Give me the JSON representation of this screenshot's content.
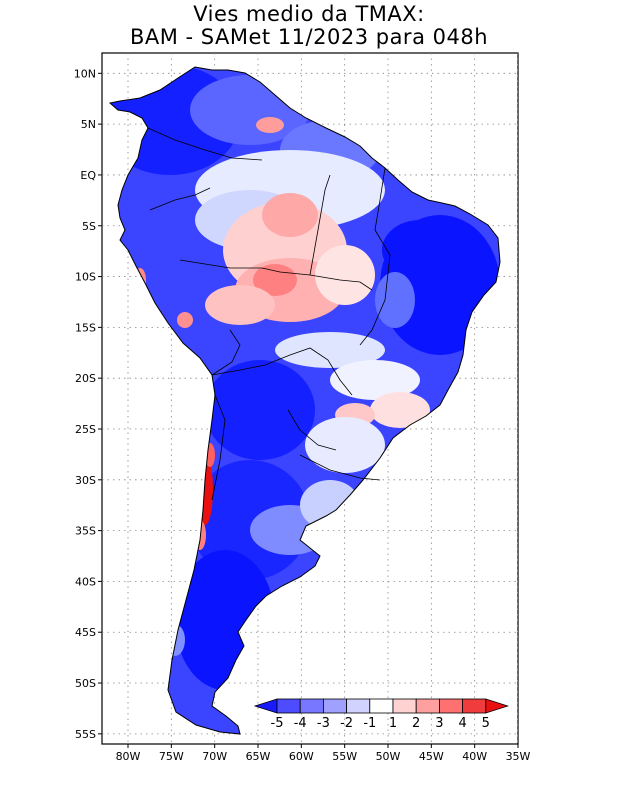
{
  "title": {
    "line1": "Vies medio da TMAX:",
    "line2": "BAM - SAMet 11/2023  para 048h"
  },
  "map": {
    "region": "South America",
    "lat_range": [
      -56,
      12
    ],
    "lon_range": [
      -83,
      -35
    ]
  },
  "axes": {
    "lat_ticks": [
      {
        "value": 10,
        "label": "10N"
      },
      {
        "value": 5,
        "label": "5N"
      },
      {
        "value": 0,
        "label": "EQ"
      },
      {
        "value": -5,
        "label": "5S"
      },
      {
        "value": -10,
        "label": "10S"
      },
      {
        "value": -15,
        "label": "15S"
      },
      {
        "value": -20,
        "label": "20S"
      },
      {
        "value": -25,
        "label": "25S"
      },
      {
        "value": -30,
        "label": "30S"
      },
      {
        "value": -35,
        "label": "35S"
      },
      {
        "value": -40,
        "label": "40S"
      },
      {
        "value": -45,
        "label": "45S"
      },
      {
        "value": -50,
        "label": "50S"
      },
      {
        "value": -55,
        "label": "55S"
      }
    ],
    "lon_ticks": [
      {
        "value": -80,
        "label": "80W"
      },
      {
        "value": -75,
        "label": "75W"
      },
      {
        "value": -70,
        "label": "70W"
      },
      {
        "value": -65,
        "label": "65W"
      },
      {
        "value": -60,
        "label": "60W"
      },
      {
        "value": -55,
        "label": "55W"
      },
      {
        "value": -50,
        "label": "50W"
      },
      {
        "value": -45,
        "label": "45W"
      },
      {
        "value": -40,
        "label": "40W"
      },
      {
        "value": -35,
        "label": "35W"
      }
    ]
  },
  "colorbar": {
    "labels": [
      "-5",
      "-4",
      "-3",
      "-2",
      "-1",
      "1",
      "2",
      "3",
      "4",
      "5"
    ],
    "colors": [
      "#1a1aff",
      "#4d4dff",
      "#7777ff",
      "#a0a0ff",
      "#d2d2ff",
      "#ffffff",
      "#ffd2d2",
      "#ffa0a0",
      "#ff7070",
      "#f03c3c",
      "#e81010"
    ]
  },
  "colors": {
    "cold_strong": "#0a14ff",
    "cold": "#4d5cff",
    "cool": "#a8b4ff",
    "neutral": "#ffffff",
    "warm": "#ffb8b8",
    "hot": "#e81010"
  }
}
